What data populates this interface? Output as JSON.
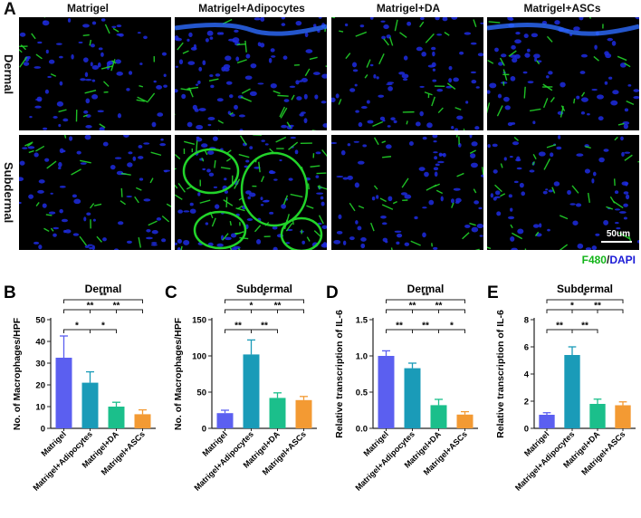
{
  "panel_a": {
    "letter": "A",
    "columns": [
      "Matrigel",
      "Matrigel+Adipocytes",
      "Matrigel+DA",
      "Matrigel+ASCs"
    ],
    "rows": [
      "Dermal",
      "Subdermal"
    ],
    "scale_label": "50um",
    "stain_legend": {
      "green": "F480",
      "sep": "/",
      "blue": "DAPI"
    },
    "colors": {
      "green": "#13b51a",
      "blue": "#1a1ad6"
    }
  },
  "charts": [
    {
      "letter": "B",
      "chart_data": {
        "type": "bar",
        "title": "Dermal",
        "ylabel": "No. of Macrophages/HPF",
        "categories": [
          "Matrigel",
          "Matrigel+Adipocytes",
          "Matrigel+DA",
          "Matrigel+ASCs"
        ],
        "values": [
          32.5,
          21,
          10,
          6.5
        ],
        "errors": [
          10,
          5,
          2,
          2
        ],
        "ylim": [
          0,
          50
        ],
        "yticks": [
          0,
          10,
          20,
          30,
          40,
          50
        ],
        "colors": [
          "#5b5ff0",
          "#1a9bb8",
          "#1bbf8b",
          "#f39a33"
        ],
        "significance": [
          {
            "from": 0,
            "to": 3,
            "label": "**"
          },
          {
            "from": 0,
            "to": 2,
            "label": "**"
          },
          {
            "from": 0,
            "to": 1,
            "label": "*"
          },
          {
            "from": 1,
            "to": 3,
            "label": "**"
          },
          {
            "from": 1,
            "to": 2,
            "label": "*"
          }
        ]
      }
    },
    {
      "letter": "C",
      "chart_data": {
        "type": "bar",
        "title": "Subdermal",
        "ylabel": "No. of Macrophages/HPF",
        "categories": [
          "Matrigel",
          "Matrigel+Adipocytes",
          "Matrigel+DA",
          "Matrigel+ASCs"
        ],
        "values": [
          21,
          102,
          42,
          39
        ],
        "errors": [
          4,
          20,
          7,
          5
        ],
        "ylim": [
          0,
          150
        ],
        "yticks": [
          0,
          50,
          100,
          150
        ],
        "colors": [
          "#5b5ff0",
          "#1a9bb8",
          "#1bbf8b",
          "#f39a33"
        ],
        "significance": [
          {
            "from": 0,
            "to": 3,
            "label": "*"
          },
          {
            "from": 0,
            "to": 2,
            "label": "*"
          },
          {
            "from": 0,
            "to": 1,
            "label": "**"
          },
          {
            "from": 1,
            "to": 3,
            "label": "**"
          },
          {
            "from": 1,
            "to": 2,
            "label": "**"
          }
        ]
      }
    },
    {
      "letter": "D",
      "chart_data": {
        "type": "bar",
        "title": "Dermal",
        "ylabel": "Relative transcription of IL-6",
        "categories": [
          "Matrigel",
          "Matrigel+Adipocytes",
          "Matrigel+DA",
          "Matrigel+ASCs"
        ],
        "values": [
          1.0,
          0.83,
          0.32,
          0.19
        ],
        "errors": [
          0.07,
          0.07,
          0.08,
          0.04
        ],
        "ylim": [
          0,
          1.5
        ],
        "yticks": [
          0.0,
          0.5,
          1.0,
          1.5
        ],
        "ytick_labels": [
          "0.0",
          "0.5",
          "1.0",
          "1.5"
        ],
        "colors": [
          "#5b5ff0",
          "#1a9bb8",
          "#1bbf8b",
          "#f39a33"
        ],
        "significance": [
          {
            "from": 0,
            "to": 3,
            "label": "**"
          },
          {
            "from": 0,
            "to": 2,
            "label": "**"
          },
          {
            "from": 0,
            "to": 1,
            "label": "**"
          },
          {
            "from": 1,
            "to": 3,
            "label": "**"
          },
          {
            "from": 1,
            "to": 2,
            "label": "**"
          },
          {
            "from": 2,
            "to": 3,
            "label": "*"
          }
        ]
      }
    },
    {
      "letter": "E",
      "chart_data": {
        "type": "bar",
        "title": "Subdermal",
        "ylabel": "Relative transcription of IL-6",
        "categories": [
          "Matrigel",
          "Matrigel+Adipocytes",
          "Matrigel+DA",
          "Matrigel+ASCs"
        ],
        "values": [
          1.0,
          5.4,
          1.8,
          1.7
        ],
        "errors": [
          0.15,
          0.6,
          0.35,
          0.25
        ],
        "ylim": [
          0,
          8
        ],
        "yticks": [
          0,
          2,
          4,
          6,
          8
        ],
        "colors": [
          "#5b5ff0",
          "#1a9bb8",
          "#1bbf8b",
          "#f39a33"
        ],
        "significance": [
          {
            "from": 0,
            "to": 3,
            "label": "*"
          },
          {
            "from": 0,
            "to": 2,
            "label": "*"
          },
          {
            "from": 0,
            "to": 1,
            "label": "**"
          },
          {
            "from": 1,
            "to": 3,
            "label": "**"
          },
          {
            "from": 1,
            "to": 2,
            "label": "**"
          }
        ]
      }
    }
  ]
}
